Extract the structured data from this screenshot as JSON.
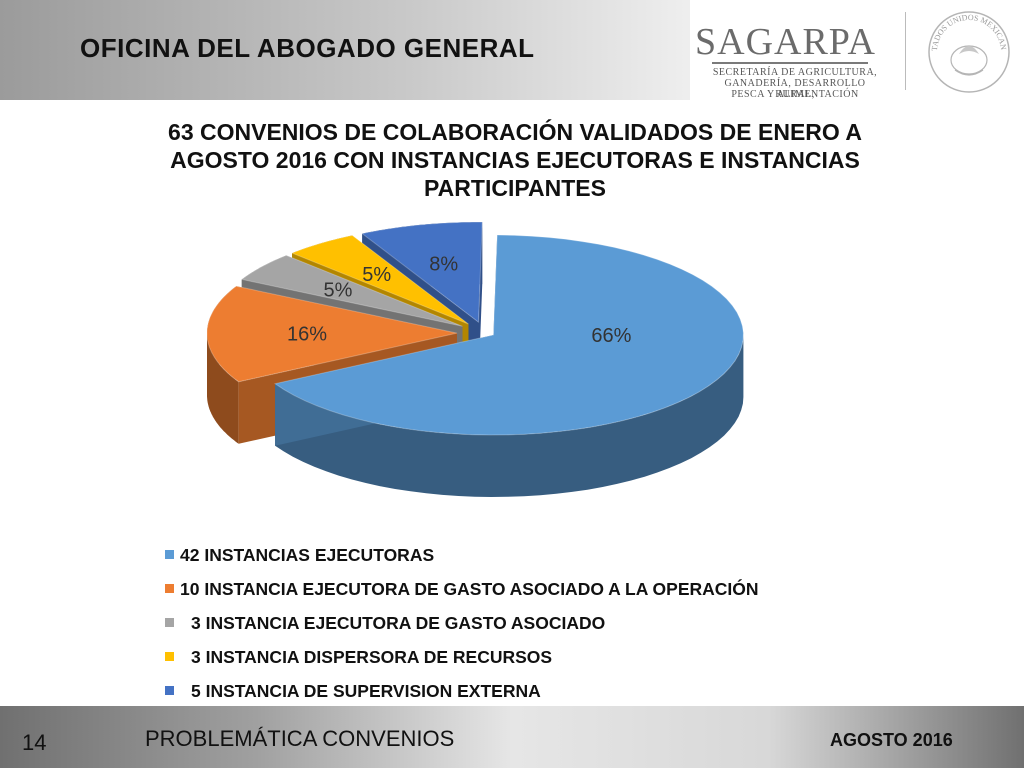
{
  "header": {
    "title": "OFICINA DEL ABOGADO GENERAL",
    "logo": {
      "name": "SAGARPA",
      "lines": [
        "SECRETARÍA DE AGRICULTURA,",
        "GANADERÍA, DESARROLLO RURAL,",
        "PESCA Y ALIMENTACIÓN"
      ],
      "seal_text": "ESTADOS UNIDOS MEXICANOS"
    }
  },
  "chart_title_lines": [
    "63 CONVENIOS DE COLABORACIÓN VALIDADOS DE ENERO A",
    "AGOSTO 2016 CON INSTANCIAS EJECUTORAS E INSTANCIAS",
    "PARTICIPANTES"
  ],
  "chart_data": {
    "type": "pie",
    "style": "3d-exploded",
    "total": 63,
    "legend_placement": "bottom",
    "slices": [
      {
        "label": "42 INSTANCIAS EJECUTORAS",
        "value": 42,
        "percent_label": "66%",
        "color": "#5b9bd5"
      },
      {
        "label": "10 INSTANCIA EJECUTORA DE GASTO ASOCIADO A LA OPERACIÓN",
        "value": 10,
        "percent_label": "16%",
        "color": "#ed7d31"
      },
      {
        "label": "3 INSTANCIA EJECUTORA DE GASTO ASOCIADO",
        "value": 3,
        "percent_label": "5%",
        "color": "#a5a5a5"
      },
      {
        "label": "3 INSTANCIA DISPERSORA DE RECURSOS",
        "value": 3,
        "percent_label": "5%",
        "color": "#ffc000"
      },
      {
        "label": "5 INSTANCIA DE SUPERVISION EXTERNA",
        "value": 5,
        "percent_label": "8%",
        "color": "#4472c4"
      }
    ]
  },
  "footer": {
    "page_number": "14",
    "section": "PROBLEMÁTICA CONVENIOS",
    "date": "AGOSTO 2016"
  }
}
